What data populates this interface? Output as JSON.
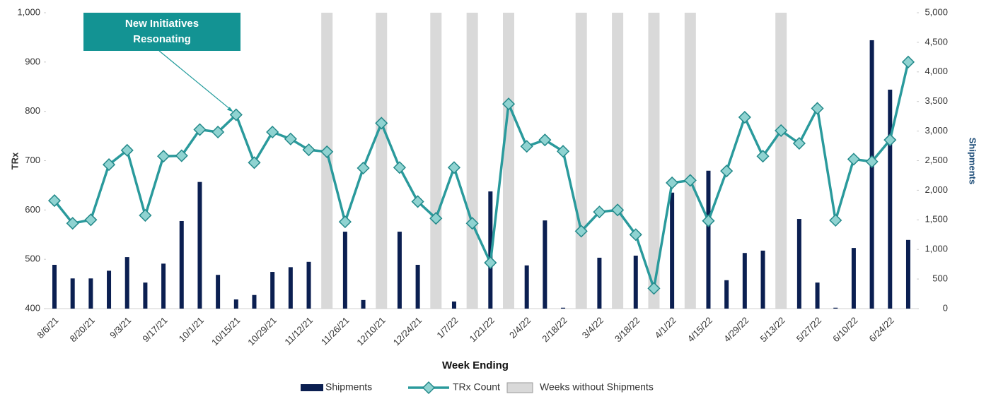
{
  "chart_data": {
    "type": "bar-line",
    "annotation": "New Initiatives Resonating",
    "xlabel": "Week Ending",
    "ylabel": "TRx",
    "y2label": "Shipments",
    "categories": [
      "8/6/21",
      null,
      "8/20/21",
      null,
      "9/3/21",
      null,
      "9/17/21",
      null,
      "10/1/21",
      null,
      "10/15/21",
      null,
      "10/29/21",
      null,
      "11/12/21",
      null,
      "11/26/21",
      null,
      "12/10/21",
      null,
      "12/24/21",
      null,
      "1/7/22",
      null,
      "1/21/22",
      null,
      "2/4/22",
      null,
      "2/18/22",
      null,
      "3/4/22",
      null,
      "3/18/22",
      null,
      "4/1/22",
      null,
      "4/15/22",
      null,
      "4/29/22",
      null,
      "5/13/22",
      null,
      "5/27/22",
      null,
      "6/10/22",
      null,
      "6/24/22",
      null
    ],
    "series": [
      {
        "name": "Shipments",
        "color": "#0b1f51",
        "axis": "y2",
        "values": [
          740,
          510,
          510,
          640,
          870,
          440,
          760,
          1480,
          2140,
          570,
          155,
          230,
          620,
          700,
          790,
          0,
          1300,
          145,
          0,
          1300,
          740,
          0,
          120,
          0,
          1980,
          0,
          730,
          1490,
          15,
          0,
          860,
          0,
          895,
          0,
          1960,
          0,
          2330,
          480,
          940,
          980,
          0,
          1515,
          440,
          15,
          1025,
          4535,
          3700,
          1160
        ]
      },
      {
        "name": "TRx Count",
        "color": "#2a9a9c",
        "values": [
          619,
          573,
          580,
          692,
          721,
          589,
          709,
          710,
          763,
          758,
          793,
          696,
          758,
          744,
          722,
          718,
          576,
          685,
          776,
          686,
          617,
          583,
          686,
          573,
          493,
          815,
          729,
          742,
          719,
          557,
          596,
          600,
          550,
          441,
          655,
          660,
          578,
          679,
          788,
          709,
          761,
          735,
          806,
          579,
          703,
          698,
          742,
          900
        ]
      }
    ],
    "shade": {
      "name": "Weeks without Shipments",
      "color": "#d9d9d9"
    },
    "ylim": [
      400,
      1000
    ],
    "yticks": [
      400,
      500,
      600,
      700,
      800,
      900,
      {
        "value": 1000,
        "label": "1,000"
      }
    ],
    "y2lim": [
      0,
      5000
    ],
    "y2ticks": [
      0,
      500,
      {
        "value": 1000,
        "label": "1,000"
      },
      {
        "value": 1500,
        "label": "1,500"
      },
      {
        "value": 2000,
        "label": "2,000"
      },
      {
        "value": 2500,
        "label": "2,500"
      },
      {
        "value": 3000,
        "label": "3,000"
      },
      {
        "value": 3500,
        "label": "3,500"
      },
      {
        "value": 4000,
        "label": "4,000"
      },
      {
        "value": 4500,
        "label": "4,500"
      },
      {
        "value": 5000,
        "label": "5,000"
      }
    ],
    "annotation_point": 10
  }
}
